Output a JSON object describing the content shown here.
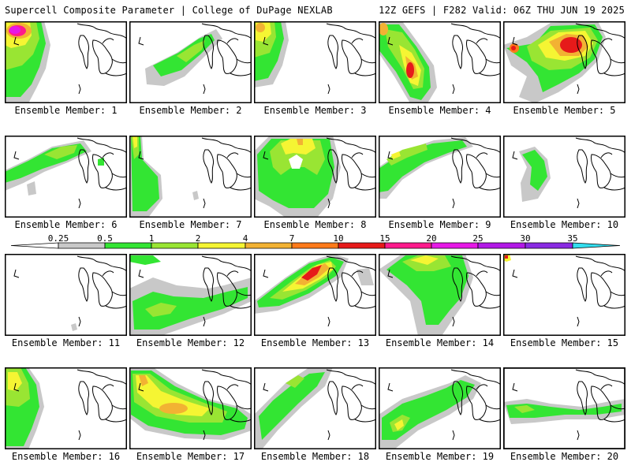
{
  "header": {
    "title": "Supercell Composite Parameter | College of DuPage NEXLAB",
    "run_info": "12Z GEFS | F282 Valid: 06Z THU JUN 19 2025"
  },
  "colorbar": {
    "ticks": [
      "0.25",
      "0.5",
      "1",
      "2",
      "4",
      "7",
      "10",
      "15",
      "20",
      "25",
      "30",
      "35"
    ],
    "colors": [
      "#c8c8c8",
      "#33e533",
      "#99e533",
      "#f5f533",
      "#f2b233",
      "#ff7a1a",
      "#e61a1a",
      "#ff1a8c",
      "#e619e6",
      "#b219e6",
      "#8a2be2",
      "#b070e0",
      "#33ddee"
    ]
  },
  "members": [
    {
      "label": "Ensemble Member: 1"
    },
    {
      "label": "Ensemble Member: 2"
    },
    {
      "label": "Ensemble Member: 3"
    },
    {
      "label": "Ensemble Member: 4"
    },
    {
      "label": "Ensemble Member: 5"
    },
    {
      "label": "Ensemble Member: 6"
    },
    {
      "label": "Ensemble Member: 7"
    },
    {
      "label": "Ensemble Member: 8"
    },
    {
      "label": "Ensemble Member: 9"
    },
    {
      "label": "Ensemble Member: 10"
    },
    {
      "label": "Ensemble Member: 11"
    },
    {
      "label": "Ensemble Member: 12"
    },
    {
      "label": "Ensemble Member: 13"
    },
    {
      "label": "Ensemble Member: 14"
    },
    {
      "label": "Ensemble Member: 15"
    },
    {
      "label": "Ensemble Member: 16"
    },
    {
      "label": "Ensemble Member: 17"
    },
    {
      "label": "Ensemble Member: 18"
    },
    {
      "label": "Ensemble Member: 19"
    },
    {
      "label": "Ensemble Member: 20"
    }
  ]
}
